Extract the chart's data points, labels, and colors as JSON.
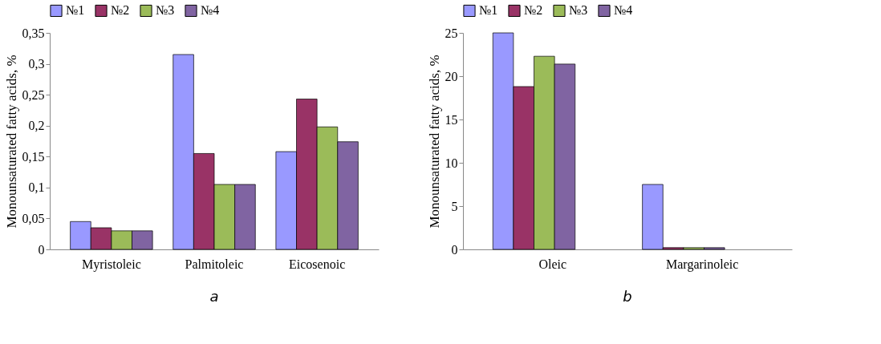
{
  "chart_data": [
    {
      "type": "bar",
      "ylabel": "Monounsaturated fatty acids, %",
      "categories": [
        "Myristoleic",
        "Palmitoleic",
        "Eicosenoic"
      ],
      "series": [
        {
          "name": "№1",
          "color": "#9999ff",
          "values": [
            0.045,
            0.315,
            0.158
          ]
        },
        {
          "name": "№2",
          "color": "#993366",
          "values": [
            0.035,
            0.155,
            0.243
          ]
        },
        {
          "name": "№3",
          "color": "#9bbb59",
          "values": [
            0.03,
            0.105,
            0.198
          ]
        },
        {
          "name": "№4",
          "color": "#8064a2",
          "values": [
            0.03,
            0.105,
            0.174
          ]
        }
      ],
      "ylim": [
        0,
        0.35
      ],
      "yticks": [
        0,
        {
          "value": 0.05,
          "label": "0,05"
        },
        {
          "value": 0.1,
          "label": "0,1"
        },
        {
          "value": 0.15,
          "label": "0,15"
        },
        {
          "value": 0.2,
          "label": "0,2"
        },
        {
          "value": 0.25,
          "label": "0,25"
        },
        {
          "value": 0.3,
          "label": "0,3"
        },
        {
          "value": 0.35,
          "label": "0,35"
        }
      ],
      "grid": false,
      "legend": "top",
      "annotations": [
        "a"
      ]
    },
    {
      "type": "bar",
      "ylabel": "Monounsaturated fatty acids, %",
      "categories": [
        "Oleic",
        "Margarinoleic"
      ],
      "series": [
        {
          "name": "№1",
          "color": "#9999ff",
          "values": [
            25,
            7.5
          ]
        },
        {
          "name": "№2",
          "color": "#993366",
          "values": [
            18.8,
            0.2
          ]
        },
        {
          "name": "№3",
          "color": "#9bbb59",
          "values": [
            22.3,
            0.2
          ]
        },
        {
          "name": "№4",
          "color": "#8064a2",
          "values": [
            21.4,
            0.2
          ]
        }
      ],
      "ylim": [
        0,
        25
      ],
      "yticks": [
        0,
        5,
        10,
        15,
        20,
        25
      ],
      "grid": false,
      "legend": "top",
      "annotations": [
        "b"
      ]
    }
  ]
}
